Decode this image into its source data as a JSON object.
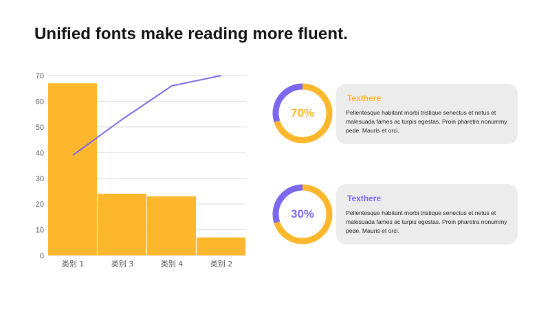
{
  "title": "Unified fonts make reading more fluent.",
  "colors": {
    "bar": "#FDB72C",
    "line": "#7B68EE",
    "gridline": "#d9d9d9",
    "axis_text": "#555555"
  },
  "chart_data": {
    "type": "bar",
    "categories": [
      "类别 1",
      "类别 3",
      "类别 4",
      "类别 2"
    ],
    "series": [
      {
        "type": "bar",
        "values": [
          67,
          24,
          23,
          7
        ]
      },
      {
        "type": "line",
        "values": [
          39,
          53,
          66,
          70
        ]
      }
    ],
    "ylim": [
      0,
      70
    ],
    "yticks": [
      0,
      10,
      20,
      30,
      40,
      50,
      60,
      70
    ],
    "grid": true
  },
  "stats": [
    {
      "percent_label": "70%",
      "percent": 70,
      "accent": "#FDB72C",
      "title": "Texthere",
      "body": "Pellentesque habitant morbi tristique senectus et netus et malesuada fames ac turpis egestas. Proin pharetra nonummy pede. Mauris et orci."
    },
    {
      "percent_label": "30%",
      "percent": 30,
      "accent": "#7B68EE",
      "title": "Texthere",
      "body": "Pellentesque habitant morbi tristique senectus et netus et malesuada fames ac turpis egestas. Proin pharetra nonummy pede. Mauris et orci."
    }
  ]
}
